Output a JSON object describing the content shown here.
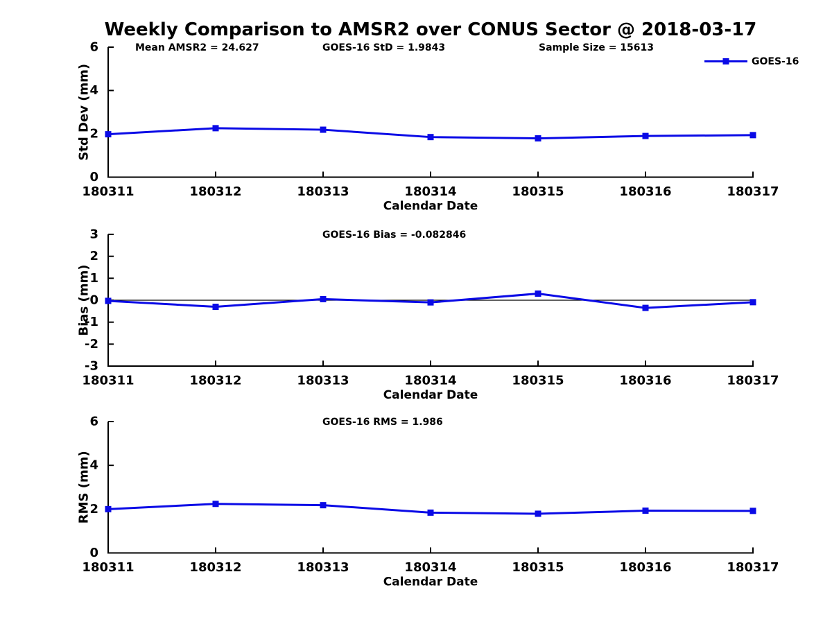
{
  "title": "Weekly Comparison to AMSR2 over CONUS Sector @ 2018-03-17",
  "colors": {
    "series_line": "#0a0ae6",
    "axis": "#000000",
    "zero_line": "#000000",
    "text": "#000000",
    "background": "#ffffff"
  },
  "legend": {
    "label": "GOES-16",
    "position": "top-right"
  },
  "chart_data": [
    {
      "type": "line",
      "id": "std-dev",
      "annotations": [
        "Mean AMSR2 = 24.627",
        "GOES-16 StD = 1.9843",
        "Sample Size = 15613"
      ],
      "xlabel": "Calendar Date",
      "ylabel": "Std Dev (mm)",
      "ylim": [
        0,
        6
      ],
      "yticks": [
        0,
        2,
        4,
        6
      ],
      "grid": false,
      "categories": [
        "180311",
        "180312",
        "180313",
        "180314",
        "180315",
        "180316",
        "180317"
      ],
      "series": [
        {
          "name": "GOES-16",
          "values": [
            1.98,
            2.26,
            2.19,
            1.85,
            1.79,
            1.9,
            1.94
          ]
        }
      ],
      "legend_visible": true,
      "zero_line": false
    },
    {
      "type": "line",
      "id": "bias",
      "annotations": [
        "GOES-16 Bias  = -0.082846"
      ],
      "xlabel": "Calendar Date",
      "ylabel": "Bias (mm)",
      "ylim": [
        -3,
        3
      ],
      "yticks": [
        -3,
        -2,
        -1,
        0,
        1,
        2,
        3
      ],
      "grid": false,
      "categories": [
        "180311",
        "180312",
        "180313",
        "180314",
        "180315",
        "180316",
        "180317"
      ],
      "series": [
        {
          "name": "GOES-16",
          "values": [
            -0.03,
            -0.3,
            0.05,
            -0.1,
            0.3,
            -0.35,
            -0.09
          ]
        }
      ],
      "legend_visible": false,
      "zero_line": true
    },
    {
      "type": "line",
      "id": "rms",
      "annotations": [
        "GOES-16 RMS = 1.986"
      ],
      "xlabel": "Calendar Date",
      "ylabel": "RMS (mm)",
      "ylim": [
        0,
        6
      ],
      "yticks": [
        0,
        2,
        4,
        6
      ],
      "grid": false,
      "categories": [
        "180311",
        "180312",
        "180313",
        "180314",
        "180315",
        "180316",
        "180317"
      ],
      "series": [
        {
          "name": "GOES-16",
          "values": [
            2.0,
            2.24,
            2.18,
            1.84,
            1.79,
            1.93,
            1.92
          ]
        }
      ],
      "legend_visible": false,
      "zero_line": false
    }
  ]
}
